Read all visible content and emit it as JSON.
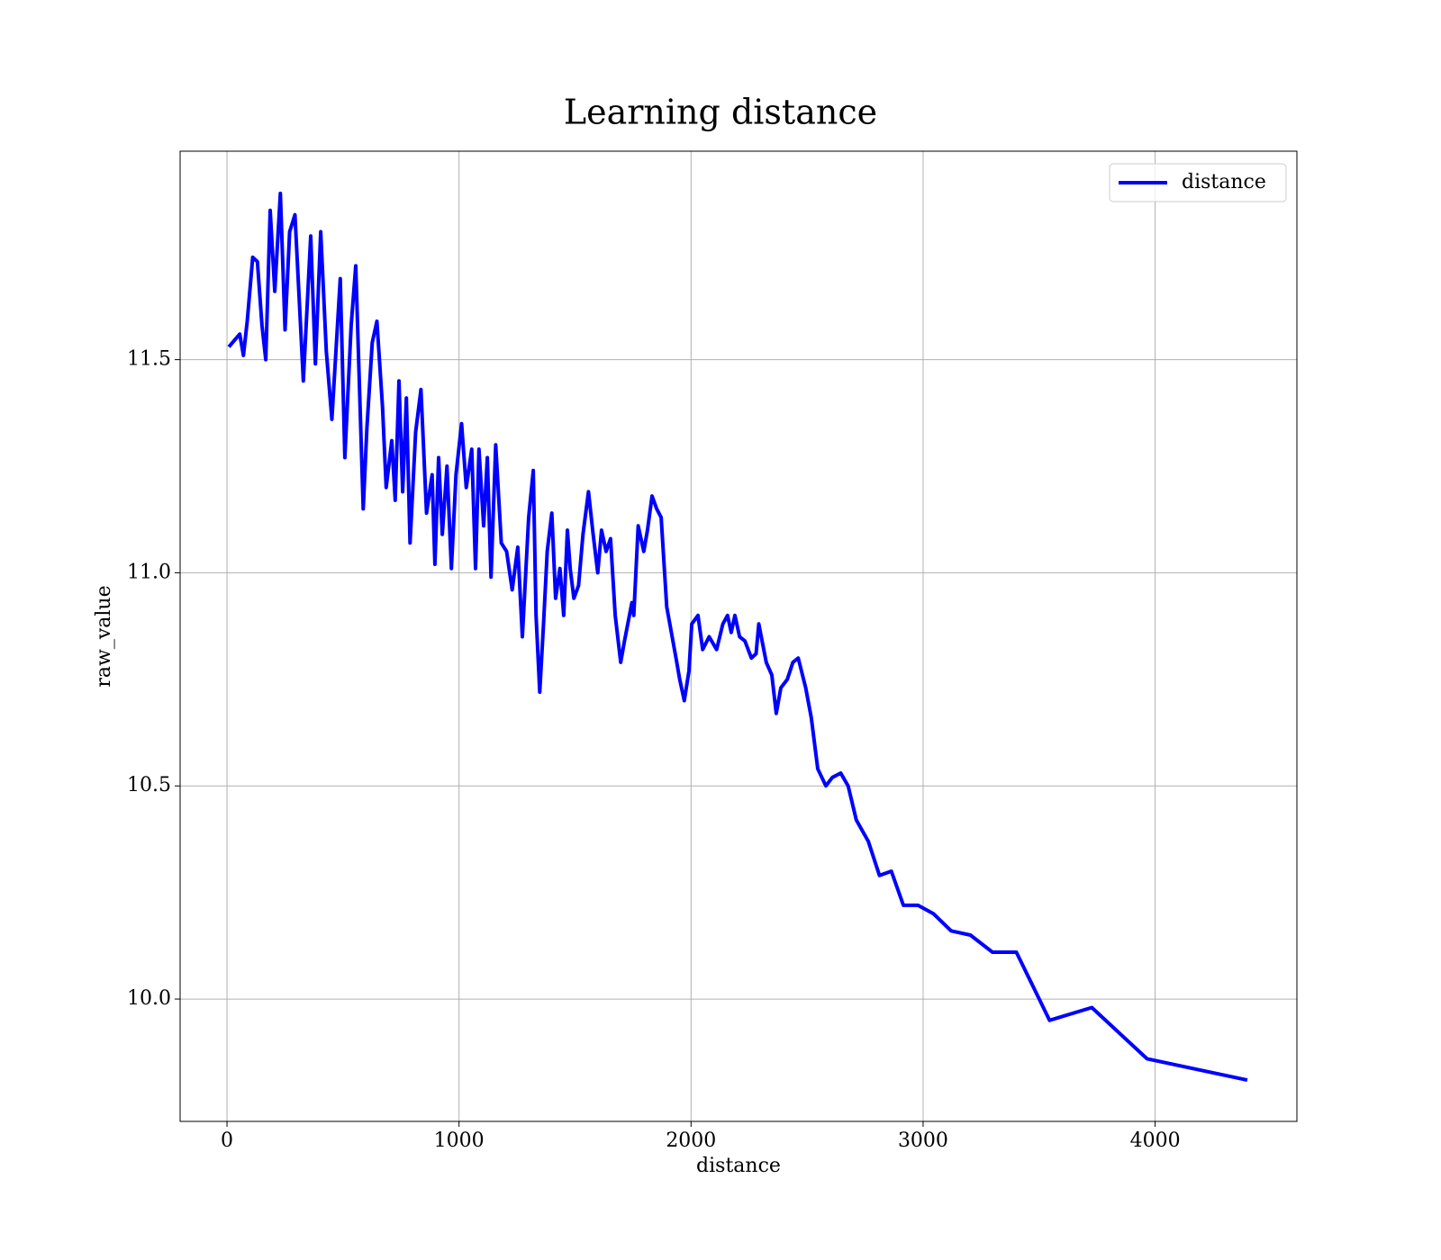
{
  "chart_data": {
    "type": "line",
    "title": "Learning distance",
    "x_label": "distance",
    "y_label": "raw_value",
    "x": [
      8,
      55,
      71,
      87,
      111,
      131,
      151,
      167,
      186,
      206,
      230,
      250,
      270,
      293,
      329,
      361,
      381,
      404,
      428,
      452,
      488,
      508,
      535,
      555,
      587,
      603,
      626,
      646,
      670,
      686,
      710,
      725,
      741,
      757,
      773,
      789,
      813,
      836,
      860,
      884,
      896,
      912,
      928,
      948,
      967,
      987,
      1011,
      1031,
      1055,
      1071,
      1086,
      1106,
      1122,
      1138,
      1158,
      1182,
      1205,
      1229,
      1253,
      1273,
      1300,
      1320,
      1332,
      1348,
      1364,
      1380,
      1400,
      1416,
      1435,
      1451,
      1467,
      1479,
      1495,
      1515,
      1534,
      1558,
      1578,
      1598,
      1614,
      1634,
      1653,
      1673,
      1697,
      1713,
      1745,
      1753,
      1772,
      1796,
      1812,
      1832,
      1852,
      1871,
      1895,
      1935,
      1951,
      1971,
      1991,
      2003,
      2030,
      2050,
      2078,
      2110,
      2137,
      2157,
      2173,
      2189,
      2209,
      2232,
      2260,
      2280,
      2292,
      2324,
      2348,
      2367,
      2387,
      2415,
      2439,
      2462,
      2494,
      2518,
      2546,
      2581,
      2609,
      2645,
      2677,
      2712,
      2764,
      2812,
      2863,
      2915,
      2978,
      3045,
      3121,
      3204,
      3299,
      3402,
      3545,
      3727,
      3965,
      4397
    ],
    "series": [
      {
        "name": "distance",
        "color": "#0000ff",
        "values": [
          11.53,
          11.56,
          11.51,
          11.59,
          11.74,
          11.73,
          11.58,
          11.5,
          11.85,
          11.66,
          11.89,
          11.57,
          11.8,
          11.84,
          11.45,
          11.79,
          11.49,
          11.8,
          11.52,
          11.36,
          11.69,
          11.27,
          11.58,
          11.72,
          11.15,
          11.34,
          11.54,
          11.59,
          11.39,
          11.2,
          11.31,
          11.17,
          11.45,
          11.19,
          11.41,
          11.07,
          11.33,
          11.43,
          11.14,
          11.23,
          11.02,
          11.27,
          11.09,
          11.25,
          11.01,
          11.23,
          11.35,
          11.2,
          11.29,
          11.01,
          11.29,
          11.11,
          11.27,
          10.99,
          11.3,
          11.07,
          11.05,
          10.96,
          11.06,
          10.85,
          11.13,
          11.24,
          10.9,
          10.72,
          10.88,
          11.05,
          11.14,
          10.94,
          11.01,
          10.9,
          11.1,
          11.01,
          10.94,
          10.97,
          11.09,
          11.19,
          11.09,
          11.0,
          11.1,
          11.05,
          11.08,
          10.9,
          10.79,
          10.84,
          10.93,
          10.9,
          11.11,
          11.05,
          11.1,
          11.18,
          11.15,
          11.13,
          10.92,
          10.8,
          10.75,
          10.7,
          10.77,
          10.88,
          10.9,
          10.82,
          10.85,
          10.82,
          10.88,
          10.9,
          10.86,
          10.9,
          10.85,
          10.84,
          10.8,
          10.81,
          10.88,
          10.79,
          10.76,
          10.67,
          10.73,
          10.75,
          10.79,
          10.8,
          10.73,
          10.66,
          10.54,
          10.5,
          10.52,
          10.53,
          10.5,
          10.42,
          10.37,
          10.29,
          10.3,
          10.22,
          10.22,
          10.2,
          10.16,
          10.15,
          10.11,
          10.11,
          9.95,
          9.98,
          9.86,
          9.81
        ]
      }
    ],
    "xlim": [
      -202,
      4611
    ],
    "ylim": [
      9.713,
      11.989
    ],
    "xticks": [
      0,
      1000,
      2000,
      3000,
      4000
    ],
    "yticks": [
      {
        "value": 10,
        "label": "10.0"
      },
      10.5,
      {
        "value": 11,
        "label": "11.0"
      },
      11.5
    ],
    "grid": true,
    "legend": "upper right"
  }
}
